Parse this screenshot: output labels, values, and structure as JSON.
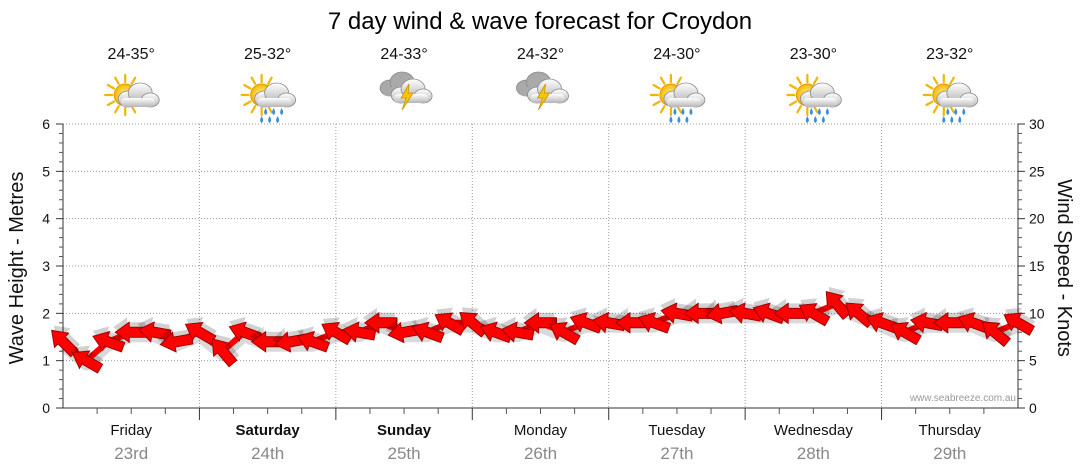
{
  "chart_data": {
    "type": "line",
    "title": "7 day wind & wave forecast for Croydon",
    "ylabel_left": "Wave Height - Metres",
    "ylabel_right": "Wind Speed - Knots",
    "yleft_ticks": [
      "0",
      "1",
      "2",
      "3",
      "4",
      "5",
      "6"
    ],
    "yleft_range": [
      0,
      6
    ],
    "yright_ticks": [
      "0",
      "5",
      "10",
      "15",
      "20",
      "25",
      "30"
    ],
    "yright_range": [
      0,
      30
    ],
    "grid": true,
    "days": [
      {
        "name": "Friday",
        "date": "23rd",
        "bold": false,
        "temp": "24-35°",
        "weather": "partly-cloudy"
      },
      {
        "name": "Saturday",
        "date": "24th",
        "bold": true,
        "temp": "25-32°",
        "weather": "showers"
      },
      {
        "name": "Sunday",
        "date": "25th",
        "bold": true,
        "temp": "24-33°",
        "weather": "storm"
      },
      {
        "name": "Monday",
        "date": "26th",
        "bold": false,
        "temp": "24-32°",
        "weather": "storm"
      },
      {
        "name": "Tuesday",
        "date": "27th",
        "bold": false,
        "temp": "24-30°",
        "weather": "showers"
      },
      {
        "name": "Wednesday",
        "date": "28th",
        "bold": false,
        "temp": "23-30°",
        "weather": "showers"
      },
      {
        "name": "Thursday",
        "date": "29th",
        "bold": false,
        "temp": "23-32°",
        "weather": "showers"
      }
    ],
    "series": [
      {
        "name": "Wind Speed (knots)",
        "color": "#ff0000",
        "x_days": [
          0.0,
          0.17,
          0.33,
          0.5,
          0.67,
          0.83,
          1.0,
          1.17,
          1.33,
          1.5,
          1.67,
          1.83,
          2.0,
          2.17,
          2.33,
          2.5,
          2.67,
          2.83,
          3.0,
          3.17,
          3.33,
          3.5,
          3.67,
          3.83,
          4.0,
          4.17,
          4.33,
          4.5,
          4.67,
          4.83,
          5.0,
          5.17,
          5.33,
          5.5,
          5.67,
          5.83,
          6.0,
          6.17,
          6.33,
          6.5,
          6.67,
          6.83,
          7.0
        ],
        "values": [
          7,
          5,
          7,
          8,
          8,
          7,
          8,
          6,
          8,
          7,
          7,
          7,
          8,
          8,
          9,
          8,
          8,
          9,
          9,
          8,
          8,
          9,
          8,
          9,
          9,
          9,
          9,
          10,
          10,
          10,
          10,
          10,
          10,
          10,
          11,
          10,
          9,
          8,
          9,
          9,
          9,
          8,
          9
        ]
      }
    ]
  },
  "credit": "www.seabreeze.com.au"
}
